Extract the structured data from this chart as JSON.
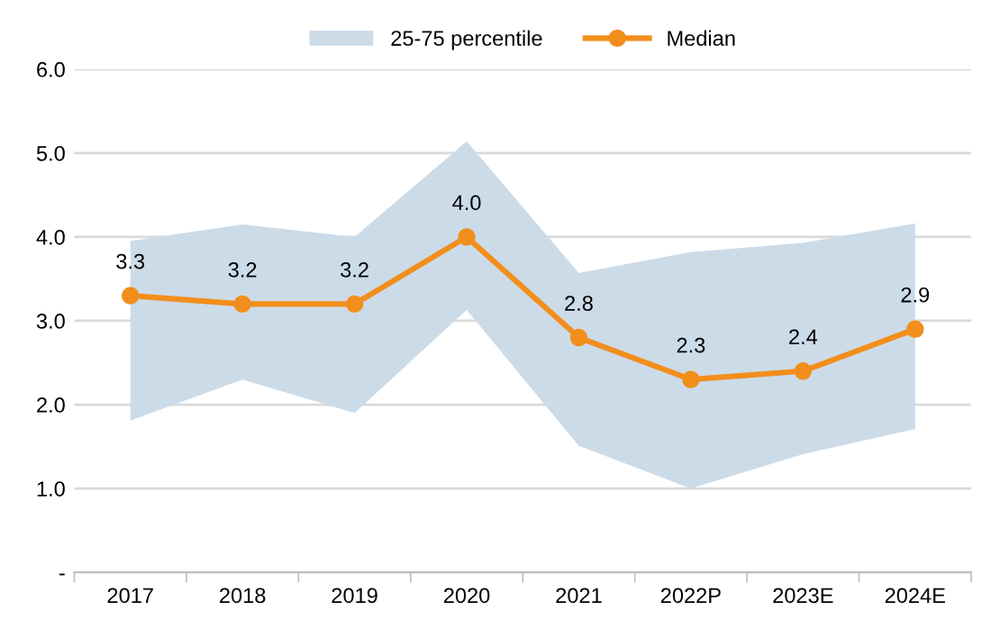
{
  "chart_data": {
    "type": "line",
    "categories": [
      "2017",
      "2018",
      "2019",
      "2020",
      "2021",
      "2022P",
      "2023E",
      "2024E"
    ],
    "series": [
      {
        "name": "25-75 percentile",
        "type": "area",
        "color": "#ccdbe8",
        "values": [
          null,
          null,
          null,
          null,
          null,
          null,
          null,
          null
        ],
        "lower": [
          1.81,
          2.3,
          1.9,
          3.13,
          1.51,
          1.0,
          1.41,
          1.71
        ],
        "upper": [
          3.95,
          4.15,
          4.0,
          5.14,
          3.57,
          3.82,
          3.93,
          4.16
        ]
      },
      {
        "name": "Median",
        "color": "#f28e1c",
        "marker": "circle",
        "values": [
          3.3,
          3.2,
          3.2,
          4.0,
          2.8,
          2.3,
          2.4,
          2.9
        ],
        "value_labels": [
          "3.3",
          "3.2",
          "3.2",
          "4.0",
          "2.8",
          "2.3",
          "2.4",
          "2.9"
        ]
      }
    ],
    "ylim": [
      0,
      6
    ],
    "yticks": [
      {
        "value": 0,
        "label": "-"
      },
      {
        "value": 1,
        "label": "1.0"
      },
      {
        "value": 2,
        "label": "2.0"
      },
      {
        "value": 3,
        "label": "3.0"
      },
      {
        "value": 4,
        "label": "4.0"
      },
      {
        "value": 5,
        "label": "5.0"
      },
      {
        "value": 6,
        "label": "6.0"
      }
    ],
    "grid": "y",
    "legend": "top",
    "line_style": "solid"
  }
}
